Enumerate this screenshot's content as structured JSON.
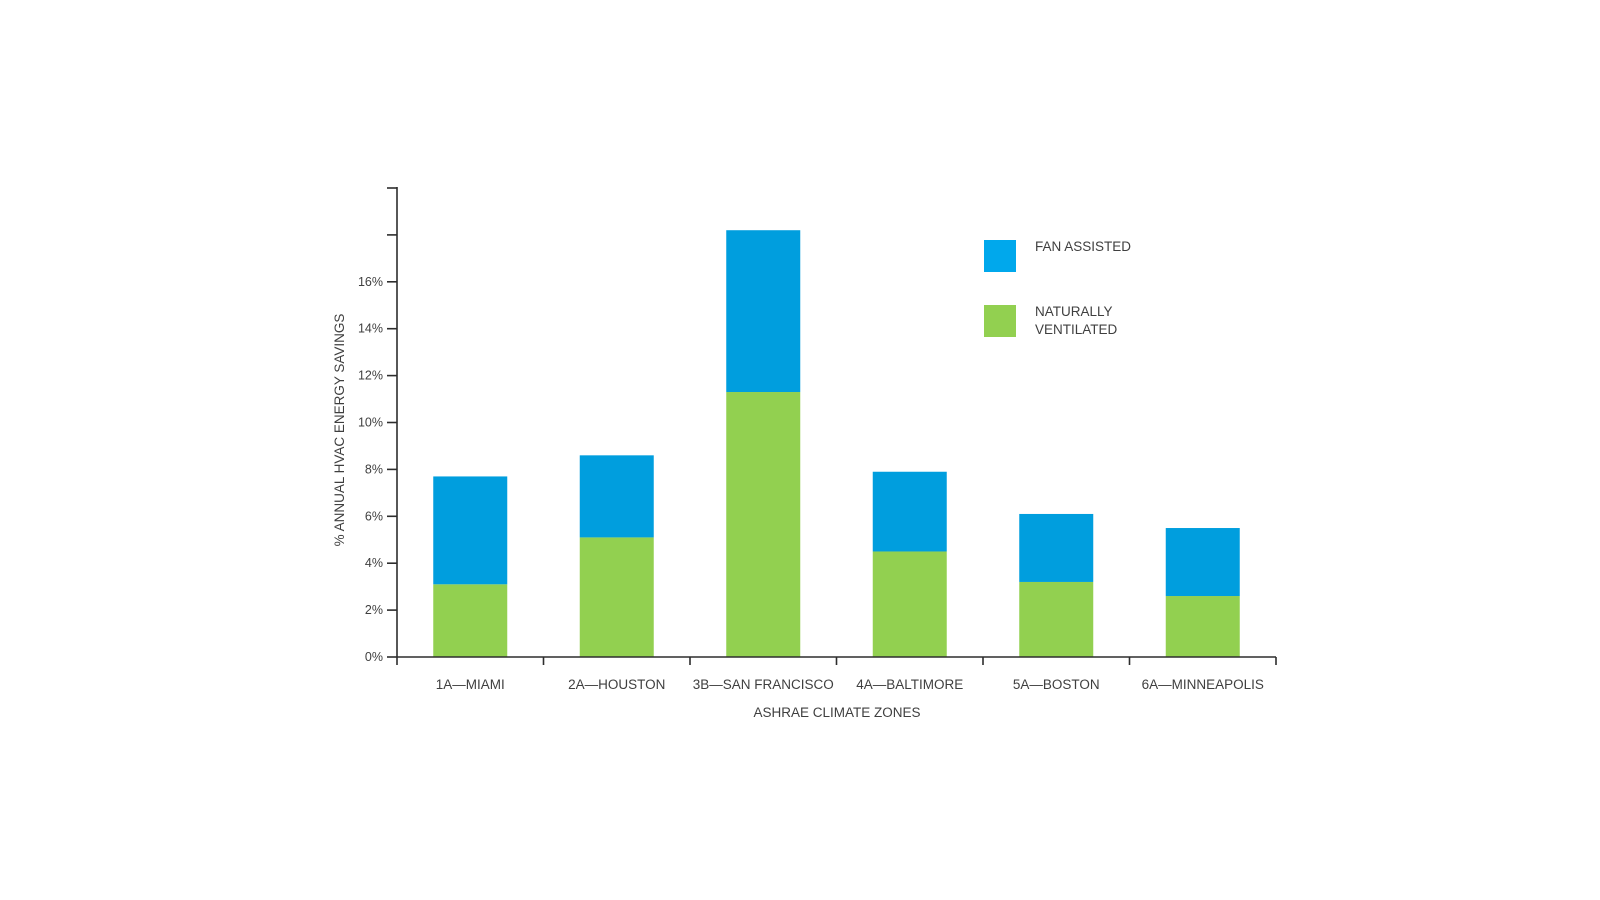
{
  "chart_data": {
    "type": "bar",
    "stacked": true,
    "categories": [
      "1A—MIAMI",
      "2A—HOUSTON",
      "3B—SAN FRANCISCO",
      "4A—BALTIMORE",
      "5A—BOSTON",
      "6A—MINNEAPOLIS"
    ],
    "series": [
      {
        "name": "NATURALLY VENTILATED",
        "color": "#92d050",
        "values": [
          3.1,
          5.1,
          11.3,
          4.5,
          3.2,
          2.6
        ]
      },
      {
        "name": "FAN ASSISTED",
        "color": "#009ede",
        "values": [
          4.6,
          3.5,
          6.9,
          3.4,
          2.9,
          2.9
        ]
      }
    ],
    "legend": {
      "position": "top-right",
      "items": [
        {
          "lines": [
            "FAN ASSISTED"
          ],
          "color": "#00a8ec"
        },
        {
          "lines": [
            "NATURALLY",
            "VENTILATED"
          ],
          "color": "#92d050"
        }
      ]
    },
    "xlabel": "ASHRAE CLIMATE ZONES",
    "ylabel": "% ANNUAL HVAC ENERGY SAVINGS",
    "yticks": [
      0,
      2,
      4,
      6,
      8,
      10,
      12,
      14,
      16
    ],
    "ytick_labels": [
      "0%",
      "2%",
      "4%",
      "6%",
      "8%",
      "10%",
      "12%",
      "14%",
      "16%"
    ],
    "ylim": [
      0,
      20
    ],
    "grid": false
  }
}
